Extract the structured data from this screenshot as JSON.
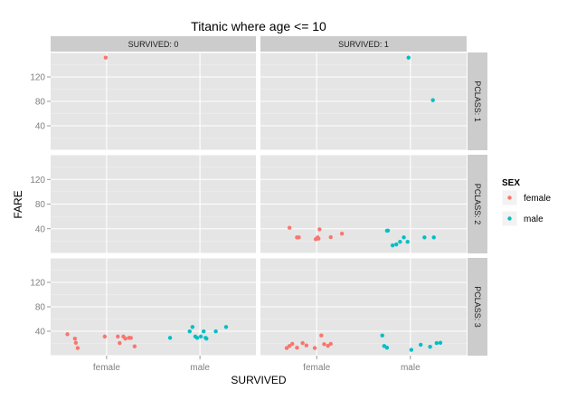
{
  "chart_data": {
    "type": "scatter",
    "title": "Titanic where age <= 10",
    "xlabel": "SURVIVED",
    "ylabel": "FARE",
    "x_categories": [
      "female",
      "male"
    ],
    "y_ticks": [
      40,
      80,
      120
    ],
    "ylim": [
      0,
      160
    ],
    "grid": true,
    "legend": {
      "title": "SEX",
      "position": "right",
      "entries": [
        {
          "name": "female",
          "color": "#f8766d"
        },
        {
          "name": "male",
          "color": "#00bfc4"
        }
      ]
    },
    "columns": [
      {
        "label": "SURVIVED: 0",
        "value": "0"
      },
      {
        "label": "SURVIVED: 1",
        "value": "1"
      }
    ],
    "rows": [
      {
        "label": "PCLASS: 1",
        "value": "1"
      },
      {
        "label": "PCLASS: 2",
        "value": "2"
      },
      {
        "label": "PCLASS: 3",
        "value": "3"
      }
    ],
    "panels": [
      {
        "survived": "0",
        "pclass": "1",
        "points": [
          {
            "sex": "female",
            "x": 0.99,
            "fare": 151.6
          }
        ]
      },
      {
        "survived": "1",
        "pclass": "1",
        "points": [
          {
            "sex": "male",
            "x": 1.98,
            "fare": 151.6
          },
          {
            "sex": "male",
            "x": 2.24,
            "fare": 81.9
          }
        ]
      },
      {
        "survived": "0",
        "pclass": "2",
        "points": []
      },
      {
        "survived": "1",
        "pclass": "2",
        "points": [
          {
            "sex": "female",
            "x": 0.71,
            "fare": 41.6
          },
          {
            "sex": "female",
            "x": 0.79,
            "fare": 26.0
          },
          {
            "sex": "female",
            "x": 0.81,
            "fare": 26.0
          },
          {
            "sex": "female",
            "x": 0.99,
            "fare": 23.0
          },
          {
            "sex": "female",
            "x": 1.01,
            "fare": 26.0
          },
          {
            "sex": "female",
            "x": 1.02,
            "fare": 24.0
          },
          {
            "sex": "female",
            "x": 1.03,
            "fare": 39.0
          },
          {
            "sex": "female",
            "x": 1.15,
            "fare": 26.3
          },
          {
            "sex": "female",
            "x": 1.27,
            "fare": 32.0
          },
          {
            "sex": "male",
            "x": 1.75,
            "fare": 36.8
          },
          {
            "sex": "male",
            "x": 1.76,
            "fare": 37.0
          },
          {
            "sex": "male",
            "x": 1.81,
            "fare": 13.0
          },
          {
            "sex": "male",
            "x": 1.85,
            "fare": 14.5
          },
          {
            "sex": "male",
            "x": 1.89,
            "fare": 18.8
          },
          {
            "sex": "male",
            "x": 1.93,
            "fare": 26.0
          },
          {
            "sex": "male",
            "x": 1.97,
            "fare": 18.8
          },
          {
            "sex": "male",
            "x": 2.15,
            "fare": 26.0
          },
          {
            "sex": "male",
            "x": 2.25,
            "fare": 26.0
          }
        ]
      },
      {
        "survived": "0",
        "pclass": "3",
        "points": [
          {
            "sex": "female",
            "x": 0.58,
            "fare": 35.0
          },
          {
            "sex": "female",
            "x": 0.66,
            "fare": 27.9
          },
          {
            "sex": "female",
            "x": 0.67,
            "fare": 21.1
          },
          {
            "sex": "female",
            "x": 0.69,
            "fare": 12.5
          },
          {
            "sex": "female",
            "x": 0.98,
            "fare": 31.3
          },
          {
            "sex": "female",
            "x": 1.12,
            "fare": 31.3
          },
          {
            "sex": "female",
            "x": 1.14,
            "fare": 20.6
          },
          {
            "sex": "female",
            "x": 1.18,
            "fare": 31.3
          },
          {
            "sex": "female",
            "x": 1.2,
            "fare": 27.9
          },
          {
            "sex": "female",
            "x": 1.24,
            "fare": 29.1
          },
          {
            "sex": "female",
            "x": 1.26,
            "fare": 29.1
          },
          {
            "sex": "female",
            "x": 1.3,
            "fare": 15.2
          },
          {
            "sex": "male",
            "x": 1.68,
            "fare": 29.1
          },
          {
            "sex": "male",
            "x": 1.89,
            "fare": 39.7
          },
          {
            "sex": "male",
            "x": 1.92,
            "fare": 46.9
          },
          {
            "sex": "male",
            "x": 1.95,
            "fare": 31.4
          },
          {
            "sex": "male",
            "x": 1.97,
            "fare": 29.1
          },
          {
            "sex": "male",
            "x": 2.01,
            "fare": 31.3
          },
          {
            "sex": "male",
            "x": 2.04,
            "fare": 39.7
          },
          {
            "sex": "male",
            "x": 2.06,
            "fare": 29.1
          },
          {
            "sex": "male",
            "x": 2.07,
            "fare": 27.9
          },
          {
            "sex": "male",
            "x": 2.17,
            "fare": 39.7
          },
          {
            "sex": "male",
            "x": 2.28,
            "fare": 46.9
          }
        ]
      },
      {
        "survived": "1",
        "pclass": "3",
        "points": [
          {
            "sex": "female",
            "x": 0.68,
            "fare": 12.5
          },
          {
            "sex": "female",
            "x": 0.71,
            "fare": 15.9
          },
          {
            "sex": "female",
            "x": 0.74,
            "fare": 19.3
          },
          {
            "sex": "female",
            "x": 0.79,
            "fare": 13.0
          },
          {
            "sex": "female",
            "x": 0.85,
            "fare": 20.6
          },
          {
            "sex": "female",
            "x": 0.89,
            "fare": 16.7
          },
          {
            "sex": "female",
            "x": 0.98,
            "fare": 12.5
          },
          {
            "sex": "female",
            "x": 1.05,
            "fare": 33.0
          },
          {
            "sex": "female",
            "x": 1.08,
            "fare": 18.8
          },
          {
            "sex": "female",
            "x": 1.12,
            "fare": 16.1
          },
          {
            "sex": "female",
            "x": 1.15,
            "fare": 19.3
          },
          {
            "sex": "male",
            "x": 1.7,
            "fare": 33.0
          },
          {
            "sex": "male",
            "x": 1.72,
            "fare": 15.9
          },
          {
            "sex": "male",
            "x": 1.75,
            "fare": 13.0
          },
          {
            "sex": "male",
            "x": 2.01,
            "fare": 9.5
          },
          {
            "sex": "male",
            "x": 2.11,
            "fare": 17.8
          },
          {
            "sex": "male",
            "x": 2.21,
            "fare": 14.5
          },
          {
            "sex": "male",
            "x": 2.28,
            "fare": 20.6
          },
          {
            "sex": "male",
            "x": 2.32,
            "fare": 21.1
          }
        ]
      }
    ]
  },
  "colors": {
    "panel_bg": "#e5e5e5",
    "grid_major": "#ffffff",
    "strip_bg": "#cccccc",
    "tick_text": "#7f7f7f",
    "title_text": "#000000"
  }
}
